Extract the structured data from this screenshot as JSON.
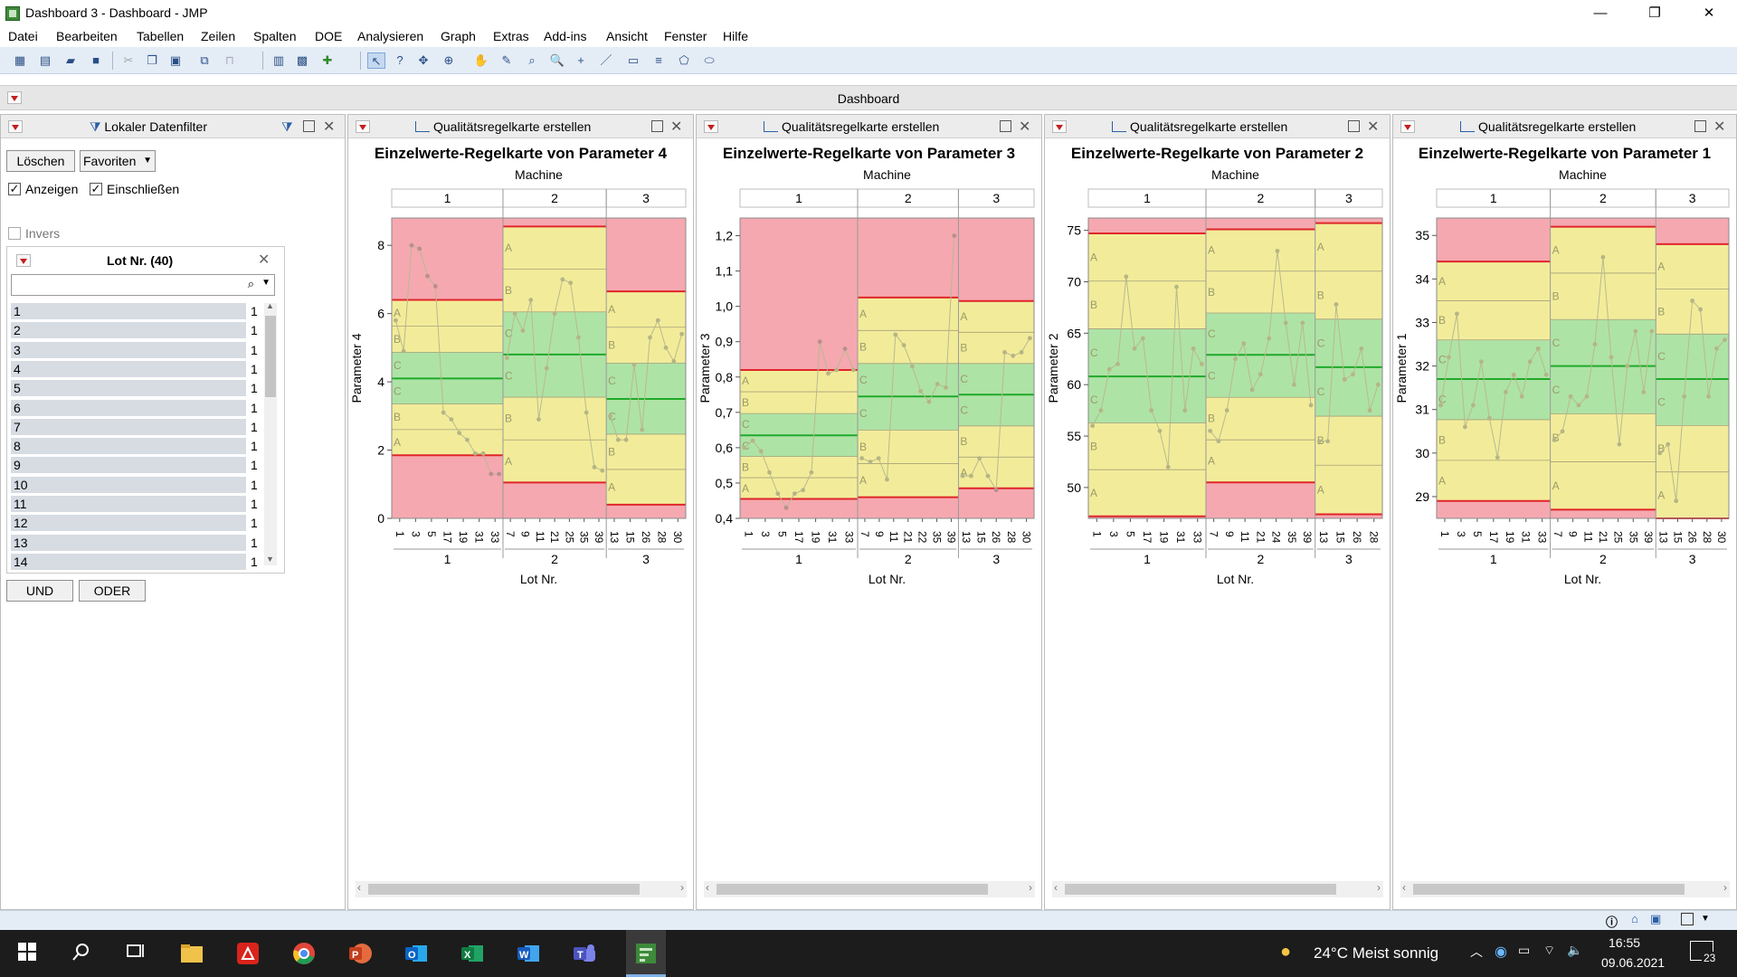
{
  "window": {
    "title": "Dashboard 3 - Dashboard - JMP",
    "minimize": "—",
    "maximize": "❐",
    "close": "✕"
  },
  "menu": [
    "Datei",
    "Bearbeiten",
    "Tabellen",
    "Zeilen",
    "Spalten",
    "DOE",
    "Analysieren",
    "Graph",
    "Extras",
    "Add-ins",
    "Ansicht",
    "Fenster",
    "Hilfe"
  ],
  "dashboard": {
    "title": "Dashboard"
  },
  "filter": {
    "title": "Lokaler Datenfilter",
    "clear_label": "Löschen",
    "favorites_label": "Favoriten",
    "show_label": "Anzeigen",
    "include_label": "Einschließen",
    "invert_label": "Invers",
    "lot_header": "Lot Nr. (40)",
    "search_value": "",
    "rows": [
      {
        "num": "1",
        "count": "1"
      },
      {
        "num": "2",
        "count": "1"
      },
      {
        "num": "3",
        "count": "1"
      },
      {
        "num": "4",
        "count": "1"
      },
      {
        "num": "5",
        "count": "1"
      },
      {
        "num": "6",
        "count": "1"
      },
      {
        "num": "7",
        "count": "1"
      },
      {
        "num": "8",
        "count": "1"
      },
      {
        "num": "9",
        "count": "1"
      },
      {
        "num": "10",
        "count": "1"
      },
      {
        "num": "11",
        "count": "1"
      },
      {
        "num": "12",
        "count": "1"
      },
      {
        "num": "13",
        "count": "1"
      },
      {
        "num": "14",
        "count": "1"
      }
    ],
    "and_label": "UND",
    "or_label": "ODER"
  },
  "panels": [
    {
      "header": "Qualitätsregelkarte erstellen"
    },
    {
      "header": "Qualitätsregelkarte erstellen"
    },
    {
      "header": "Qualitätsregelkarte erstellen"
    },
    {
      "header": "Qualitätsregelkarte erstellen"
    }
  ],
  "chart_data": [
    {
      "type": "line",
      "title": "Einzelwerte-Regelkarte von Parameter 4",
      "group_label": "Machine",
      "ylabel": "Parameter 4",
      "xlabel": "Lot Nr.",
      "ylim": [
        0,
        8.8
      ],
      "yticks": [
        "0",
        "2",
        "4",
        "6",
        "8"
      ],
      "yvals": [
        0,
        2,
        4,
        6,
        8
      ],
      "groups": [
        {
          "name": "1",
          "lcl": 1.85,
          "cl": 4.1,
          "ucl": 6.4,
          "xticks": [
            "1",
            "3",
            "5",
            "17",
            "19",
            "31",
            "33"
          ],
          "values": [
            5.8,
            4.9,
            8.0,
            7.9,
            7.1,
            6.8,
            3.1,
            2.9,
            2.5,
            2.3,
            1.9,
            1.9,
            1.3,
            1.3
          ]
        },
        {
          "name": "2",
          "lcl": 1.05,
          "cl": 4.8,
          "ucl": 8.55,
          "xticks": [
            "7",
            "9",
            "11",
            "21",
            "25",
            "35",
            "39"
          ],
          "values": [
            4.7,
            6.0,
            5.5,
            6.4,
            2.9,
            4.4,
            6.0,
            7.0,
            6.9,
            5.3,
            3.1,
            1.5,
            1.4
          ]
        },
        {
          "name": "3",
          "lcl": 0.4,
          "cl": 3.5,
          "ucl": 6.65,
          "xticks": [
            "13",
            "15",
            "26",
            "28",
            "30"
          ],
          "values": [
            3.0,
            2.3,
            2.3,
            4.5,
            2.6,
            5.3,
            5.8,
            5.0,
            4.6,
            5.4
          ]
        }
      ]
    },
    {
      "type": "line",
      "title": "Einzelwerte-Regelkarte von Parameter 3",
      "group_label": "Machine",
      "ylabel": "Parameter 3",
      "xlabel": "Lot Nr.",
      "ylim": [
        0.4,
        1.25
      ],
      "yticks": [
        "0,4",
        "0,5",
        "0,6",
        "0,7",
        "0,8",
        "0,9",
        "1,0",
        "1,1",
        "1,2"
      ],
      "yvals": [
        0.4,
        0.5,
        0.6,
        0.7,
        0.8,
        0.9,
        1.0,
        1.1,
        1.2
      ],
      "groups": [
        {
          "name": "1",
          "lcl": 0.455,
          "cl": 0.635,
          "ucl": 0.82,
          "xticks": [
            "1",
            "3",
            "5",
            "17",
            "19",
            "31",
            "33"
          ],
          "values": [
            0.6,
            0.62,
            0.59,
            0.53,
            0.47,
            0.43,
            0.47,
            0.48,
            0.53,
            0.9,
            0.81,
            0.82,
            0.88,
            0.82
          ]
        },
        {
          "name": "2",
          "lcl": 0.46,
          "cl": 0.745,
          "ucl": 1.025,
          "xticks": [
            "7",
            "9",
            "11",
            "21",
            "22",
            "35",
            "39"
          ],
          "values": [
            0.57,
            0.56,
            0.57,
            0.51,
            0.92,
            0.89,
            0.83,
            0.76,
            0.73,
            0.78,
            0.77,
            1.2
          ]
        },
        {
          "name": "3",
          "lcl": 0.485,
          "cl": 0.75,
          "ucl": 1.015,
          "xticks": [
            "13",
            "15",
            "26",
            "28",
            "30"
          ],
          "values": [
            0.52,
            0.52,
            0.57,
            0.52,
            0.48,
            0.87,
            0.86,
            0.87,
            0.91
          ]
        }
      ]
    },
    {
      "type": "line",
      "title": "Einzelwerte-Regelkarte von Parameter 2",
      "group_label": "Machine",
      "ylabel": "Parameter 2",
      "xlabel": "Lot Nr.",
      "ylim": [
        47,
        76.2
      ],
      "yticks": [
        "50",
        "55",
        "60",
        "65",
        "70",
        "75"
      ],
      "yvals": [
        50,
        55,
        60,
        65,
        70,
        75
      ],
      "groups": [
        {
          "name": "1",
          "lcl": 47.2,
          "cl": 60.8,
          "ucl": 74.7,
          "xticks": [
            "1",
            "3",
            "5",
            "17",
            "19",
            "31",
            "33"
          ],
          "values": [
            56,
            57.5,
            61.5,
            62,
            70.5,
            63.5,
            64.5,
            57.5,
            55.5,
            52,
            69.5,
            57.5,
            63.5,
            62
          ]
        },
        {
          "name": "2",
          "lcl": 50.5,
          "cl": 62.9,
          "ucl": 75.1,
          "xticks": [
            "7",
            "9",
            "11",
            "21",
            "24",
            "35",
            "39"
          ],
          "values": [
            55.5,
            54.5,
            57.5,
            62.5,
            64,
            59.5,
            61,
            64.5,
            73,
            66,
            60,
            66,
            58
          ]
        },
        {
          "name": "3",
          "lcl": 47.4,
          "cl": 61.7,
          "ucl": 75.7,
          "xticks": [
            "13",
            "15",
            "26",
            "28"
          ],
          "values": [
            54.5,
            54.5,
            67.8,
            60.5,
            61,
            63.5,
            57.5,
            60
          ]
        }
      ]
    },
    {
      "type": "line",
      "title": "Einzelwerte-Regelkarte von Parameter 1",
      "group_label": "Machine",
      "ylabel": "Parameter 1",
      "xlabel": "Lot Nr.",
      "ylim": [
        28.5,
        35.4
      ],
      "yticks": [
        "29",
        "30",
        "31",
        "32",
        "33",
        "34",
        "35"
      ],
      "yvals": [
        29,
        30,
        31,
        32,
        33,
        34,
        35
      ],
      "groups": [
        {
          "name": "1",
          "lcl": 28.9,
          "cl": 31.7,
          "ucl": 34.4,
          "xticks": [
            "1",
            "3",
            "5",
            "17",
            "19",
            "31",
            "33"
          ],
          "values": [
            31.1,
            32.2,
            33.2,
            30.6,
            31.1,
            32.1,
            30.8,
            29.9,
            31.4,
            31.8,
            31.3,
            32.1,
            32.4,
            31.8
          ]
        },
        {
          "name": "2",
          "lcl": 28.7,
          "cl": 32.0,
          "ucl": 35.2,
          "xticks": [
            "7",
            "9",
            "11",
            "21",
            "25",
            "35",
            "39"
          ],
          "values": [
            30.3,
            30.5,
            31.3,
            31.1,
            31.3,
            32.5,
            34.5,
            32.2,
            30.2,
            32.0,
            32.8,
            31.4,
            32.8
          ]
        },
        {
          "name": "3",
          "lcl": 28.5,
          "cl": 31.7,
          "ucl": 34.8,
          "xticks": [
            "13",
            "15",
            "26",
            "28",
            "30"
          ],
          "values": [
            30.0,
            30.2,
            28.9,
            31.3,
            33.5,
            33.3,
            31.3,
            32.4,
            32.6
          ]
        }
      ]
    }
  ],
  "taskbar": {
    "weather": "24°C  Meist sonnig",
    "time": "16:55",
    "date": "09.06.2021",
    "notifications": "23"
  }
}
